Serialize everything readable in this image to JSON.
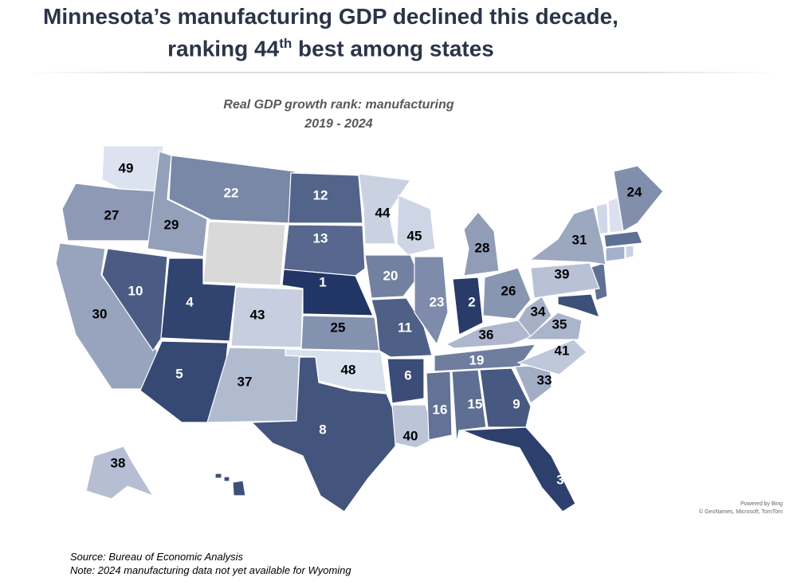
{
  "header": {
    "title_line1": "Minnesota’s manufacturing GDP declined this decade,",
    "title_line2_pre": "ranking 44",
    "title_line2_sup": "th",
    "title_line2_post": " best among states"
  },
  "map": {
    "title": "Real GDP growth rank: manufacturing",
    "subtitle": "2019 - 2024",
    "colors": {
      "best": "#223665",
      "worst": "#dfe5f2",
      "no_data": "#d9d9d9"
    },
    "states": [
      {
        "id": "WA",
        "rank": 49
      },
      {
        "id": "OR",
        "rank": 27
      },
      {
        "id": "CA",
        "rank": 30
      },
      {
        "id": "ID",
        "rank": 29
      },
      {
        "id": "NV",
        "rank": 10
      },
      {
        "id": "MT",
        "rank": 22
      },
      {
        "id": "WY",
        "rank": null
      },
      {
        "id": "UT",
        "rank": 4
      },
      {
        "id": "AZ",
        "rank": 5
      },
      {
        "id": "CO",
        "rank": 43
      },
      {
        "id": "NM",
        "rank": 37
      },
      {
        "id": "ND",
        "rank": 12
      },
      {
        "id": "SD",
        "rank": 13
      },
      {
        "id": "NE",
        "rank": 1
      },
      {
        "id": "KS",
        "rank": 25
      },
      {
        "id": "OK",
        "rank": 48
      },
      {
        "id": "TX",
        "rank": 8
      },
      {
        "id": "MN",
        "rank": 44
      },
      {
        "id": "IA",
        "rank": 20
      },
      {
        "id": "MO",
        "rank": 11
      },
      {
        "id": "AR",
        "rank": 6
      },
      {
        "id": "LA",
        "rank": 40
      },
      {
        "id": "WI",
        "rank": 45
      },
      {
        "id": "IL",
        "rank": 23
      },
      {
        "id": "MI",
        "rank": 28
      },
      {
        "id": "IN",
        "rank": 2
      },
      {
        "id": "OH",
        "rank": 26
      },
      {
        "id": "KY",
        "rank": 36
      },
      {
        "id": "TN",
        "rank": 19
      },
      {
        "id": "MS",
        "rank": 16
      },
      {
        "id": "AL",
        "rank": 15
      },
      {
        "id": "GA",
        "rank": 9
      },
      {
        "id": "FL",
        "rank": 3
      },
      {
        "id": "SC",
        "rank": 33
      },
      {
        "id": "NC",
        "rank": 41
      },
      {
        "id": "VA",
        "rank": 35
      },
      {
        "id": "WV",
        "rank": 34
      },
      {
        "id": "PA",
        "rank": 39
      },
      {
        "id": "NY",
        "rank": 31
      },
      {
        "id": "ME",
        "rank": 24
      },
      {
        "id": "AK",
        "rank": 38
      }
    ],
    "attribution_line1": "Powered by Bing",
    "attribution_line2": "© GeoNames, Microsoft, TomTom"
  },
  "footer": {
    "source": "Source: Bureau of Economic Analysis",
    "note": "Note: 2024 manufacturing data not yet available for Wyoming"
  }
}
